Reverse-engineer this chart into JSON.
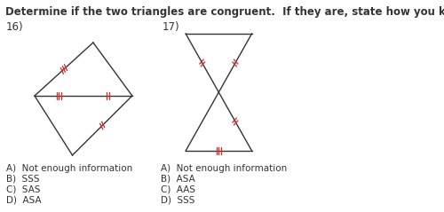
{
  "title": "Determine if the two triangles are congruent.  If they are, state how you know.",
  "title_fontsize": 8.5,
  "title_fontweight": "bold",
  "bg_color": "#ffffff",
  "label16": "16)",
  "label17": "17)",
  "answers16": [
    "A)  Not enough information",
    "B)  SSS",
    "C)  SAS",
    "D)  ASA"
  ],
  "answers17": [
    "A)  Not enough information",
    "B)  ASA",
    "C)  AAS",
    "D)  SSS"
  ],
  "line_color": "#333333",
  "tick_color": "#cc3333"
}
